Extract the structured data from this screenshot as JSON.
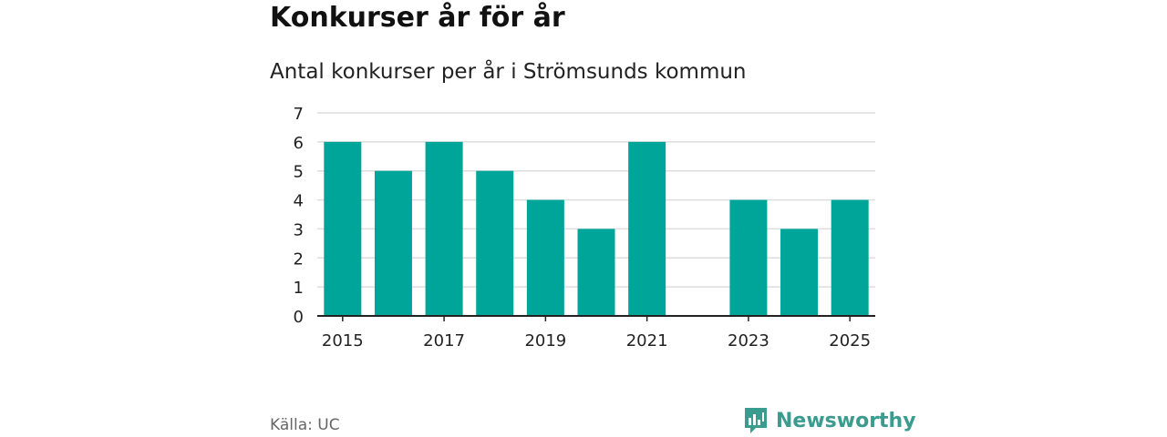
{
  "header": {
    "title": "Konkurser år för år",
    "subtitle": "Antal konkurser per år i Strömsunds kommun"
  },
  "footer": {
    "source": "Källa: UC",
    "brand": "Newsworthy",
    "brand_color": "#3a9b8e"
  },
  "chart_data": {
    "type": "bar",
    "title": "Konkurser år för år",
    "subtitle": "Antal konkurser per år i Strömsunds kommun",
    "categories": [
      "2015",
      "2016",
      "2017",
      "2018",
      "2019",
      "2020",
      "2021",
      "2022",
      "2023",
      "2024",
      "2025"
    ],
    "values": [
      6,
      5,
      6,
      5,
      4,
      3,
      6,
      0,
      4,
      3,
      4
    ],
    "x_tick_labels": [
      "2015",
      "2017",
      "2019",
      "2021",
      "2023",
      "2025"
    ],
    "y_ticks": [
      "0",
      "1",
      "2",
      "3",
      "4",
      "5",
      "6",
      "7"
    ],
    "ylim": [
      0,
      7
    ],
    "xlabel": "",
    "ylabel": "",
    "grid": true,
    "bar_color": "#00a59a",
    "grid_color": "#dddddd",
    "axis_color": "#222222"
  }
}
